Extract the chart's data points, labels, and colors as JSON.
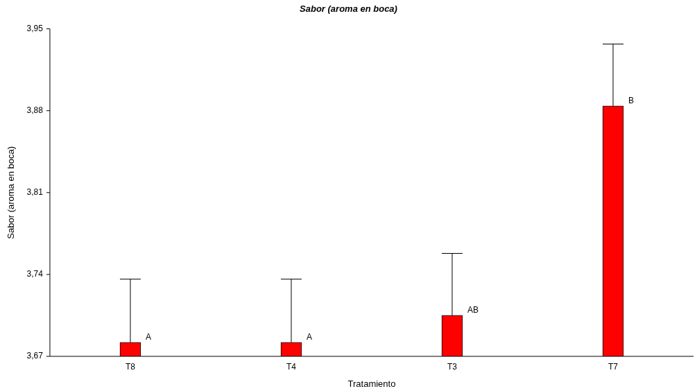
{
  "chart_data": {
    "type": "bar",
    "title": "Sabor (aroma en boca)",
    "xlabel": "Tratamiento",
    "ylabel": "Sabor (aroma en boca)",
    "categories": [
      "T8",
      "T4",
      "T3",
      "T7"
    ],
    "values": [
      3.682,
      3.682,
      3.705,
      3.884
    ],
    "errors": [
      [
        3.682,
        3.736
      ],
      [
        3.682,
        3.736
      ],
      [
        3.705,
        3.758
      ],
      [
        3.884,
        3.937
      ]
    ],
    "color": "#ff0000",
    "ylim": [
      3.67,
      3.95
    ],
    "yticks": [
      {
        "value": 3.67,
        "label": "3,67"
      },
      {
        "value": 3.74,
        "label": "3,74"
      },
      {
        "value": 3.81,
        "label": "3,81"
      },
      {
        "value": 3.88,
        "label": "3,88"
      },
      {
        "value": 3.95,
        "label": "3,95"
      }
    ],
    "grid": false,
    "legend": false,
    "annotations": [
      {
        "text": "A",
        "x": "T8",
        "y": 3.682
      },
      {
        "text": "A",
        "x": "T4",
        "y": 3.682
      },
      {
        "text": "AB",
        "x": "T3",
        "y": 3.705
      },
      {
        "text": "B",
        "x": "T7",
        "y": 3.884
      }
    ]
  }
}
